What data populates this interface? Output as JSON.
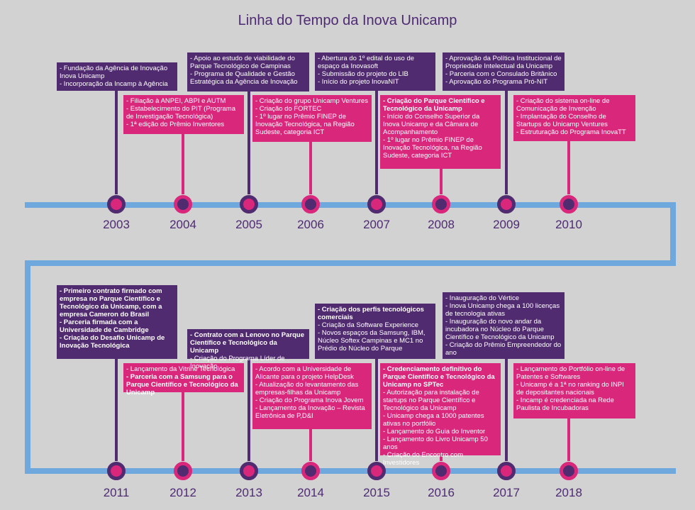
{
  "title": "Linha do Tempo da Inova Unicamp",
  "colors": {
    "purple": "#512b6f",
    "pink": "#d9287c",
    "line": "#6fa8dc",
    "background": "#d2d2d2"
  },
  "years": [
    "2003",
    "2004",
    "2005",
    "2006",
    "2007",
    "2008",
    "2009",
    "2010",
    "2011",
    "2012",
    "2013",
    "2014",
    "2015",
    "2016",
    "2017",
    "2018"
  ],
  "events": {
    "y2003": [
      "- Fundação da Agência de Inovação Inova Unicamp",
      "- Incorporação da Incamp à Agência"
    ],
    "y2004": [
      "- Filiação à ANPEI, ABPI e AUTM",
      "- Estabelecimento do PIT (Programa de Investigação Tecnológica)",
      "- 1ª edição do Prêmio Inventores"
    ],
    "y2005": [
      "- Apoio ao estudo de viabilidade do Parque Tecnológico de Campinas",
      "- Programa de Qualidade e Gestão Estratégica da Agência de Inovação"
    ],
    "y2006": [
      "- Criação do grupo Unicamp Ventures",
      "- Criação do FORTEC",
      "- 1º lugar no Prêmio FINEP de Inovação Tecnológica, na Região Sudeste, categoria ICT"
    ],
    "y2007": [
      "- Abertura do 1º edital do uso de espaço da Inovasoft",
      "- Submissão do projeto do LIB",
      "- Início do projeto InovaNIT"
    ],
    "y2008": [
      "- Criação do Parque Científico e Tecnológico da Unicamp",
      "- Início do Conselho Superior da Inova Unicamp e da Câmara de Acompanhamento",
      "- 1º lugar no Prêmio FINEP de Inovação Tecnológica, na Região Sudeste, categoria ICT"
    ],
    "y2009": [
      "- Aprovação da Política Institucional de Propriedade Intelectual da Unicamp",
      "- Parceria com o Consulado Britânico",
      "- Aprovação do Programa Pró-NIT"
    ],
    "y2010": [
      "- Criação do sistema on-line de Comunicação de Invenção",
      "- Implantação do Conselho de Startups do Unicamp Ventures",
      "- Estruturação do Programa InovaTT"
    ],
    "y2011": [
      "- Primeiro contrato firmado com empresa no Parque Científico e Tecnológico da Unicamp, com a empresa Cameron do Brasil",
      "- Parceria firmada com a Universidade de Cambridge",
      "- Criação do Desafio Unicamp de Inovação Tecnológica"
    ],
    "y2012": [
      "- Lançamento da Vitrine Tecnológica",
      "- Parceria com a Samsung para o Parque Científico e Tecnológico da Unicamp"
    ],
    "y2013": [
      "- Contrato com a Lenovo no Parque Científico e Tecnológico da Unicamp",
      "- Criação do Programa Líder de Inovação"
    ],
    "y2014": [
      "- Acordo com a Universidade de Alicante para o projeto HelpDesk",
      "- Atualização do levantamento das empresas-filhas da Unicamp",
      "- Criação do Programa Inova Jovem",
      "- Lançamento da Inovação – Revista Eletrônica de P,D&I"
    ],
    "y2015": [
      "- Criação dos perfis tecnológicos comerciais",
      "- Criação da Software Experience",
      "- Novos espaços da Samsung, IBM, Núcleo Softex Campinas e MC1 no Prédio do Núcleo do Parque"
    ],
    "y2016": [
      "- Credenciamento definitivo do Parque Científico e Tecnológico da Unicamp no SPTec",
      "- Autorização para instalação de startups no Parque Científico e Tecnológico da Unicamp",
      "- Unicamp chega a 1000 patentes ativas no portfólio",
      "- Lançamento do Guia do Inventor",
      "- Lançamento do Livro Unicamp 50 anos",
      "- Criação do Encontro com Investidores"
    ],
    "y2017": [
      "- Inauguração do Vértice",
      "- Inova Unicamp chega a 100 licenças de tecnologia ativas",
      "- Inauguração do novo andar da incubadora no Núcleo do Parque Científico e Tecnológico da Unicamp",
      "- Criação do Prêmio Empreendedor do ano"
    ],
    "y2018": [
      "- Lançamento do Portfólio on-line de Patentes e Softwares",
      "- Unicamp é a 1ª no ranking do INPI de depositantes nacionais",
      "- Incamp é credenciada na Rede Paulista de Incubadoras"
    ]
  }
}
